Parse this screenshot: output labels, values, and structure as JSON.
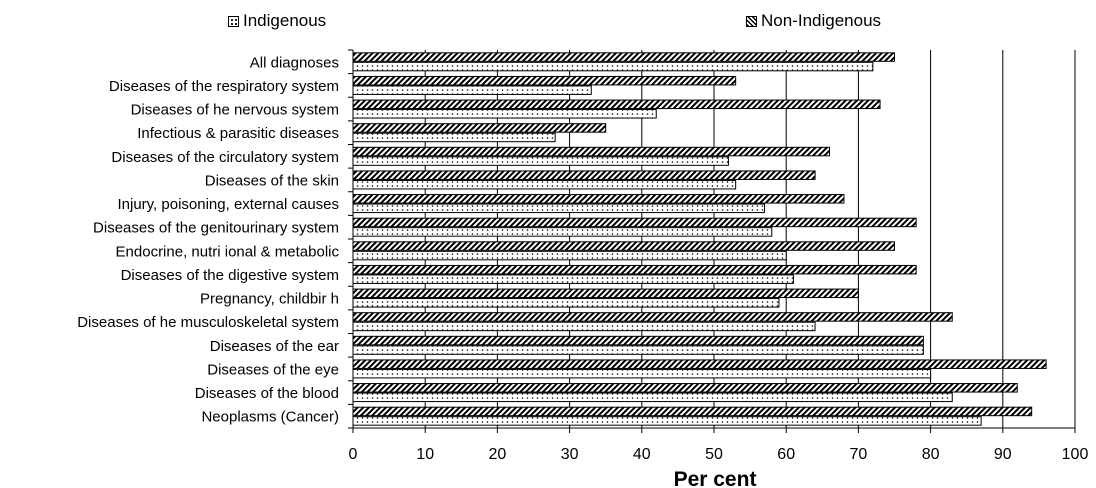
{
  "legend": {
    "indigenous": "Indigenous",
    "non_indigenous": "Non-Indigenous"
  },
  "chart_data": {
    "type": "bar",
    "orientation": "horizontal",
    "title": "",
    "xlabel": "Per cent",
    "ylabel": "",
    "xlim": [
      0,
      100
    ],
    "xticks": [
      0,
      10,
      20,
      30,
      40,
      50,
      60,
      70,
      80,
      90,
      100
    ],
    "grid": true,
    "legend_position": "top",
    "categories": [
      "All diagnoses",
      "Diseases of the respiratory system",
      "Diseases of  he nervous system",
      "Infectious & parasitic diseases",
      "Diseases of the circulatory system",
      "Diseases of the skin",
      "Injury, poisoning, external causes",
      "Diseases of the genitourinary system",
      "Endocrine, nutri ional & metabolic",
      "Diseases of the digestive system",
      "Pregnancy, childbir h",
      "Diseases of  he musculoskeletal system",
      "Diseases of the ear",
      "Diseases of the eye",
      "Diseases of the blood",
      "Neoplasms (Cancer)"
    ],
    "series": [
      {
        "name": "Non-Indigenous",
        "pattern": "diagonal-hatch",
        "values": [
          75,
          53,
          73,
          35,
          66,
          64,
          68,
          78,
          75,
          78,
          70,
          83,
          79,
          96,
          92,
          94
        ]
      },
      {
        "name": "Indigenous",
        "pattern": "dotted",
        "values": [
          72,
          33,
          42,
          28,
          52,
          53,
          57,
          58,
          60,
          61,
          59,
          64,
          79,
          80,
          83,
          87
        ]
      }
    ]
  }
}
